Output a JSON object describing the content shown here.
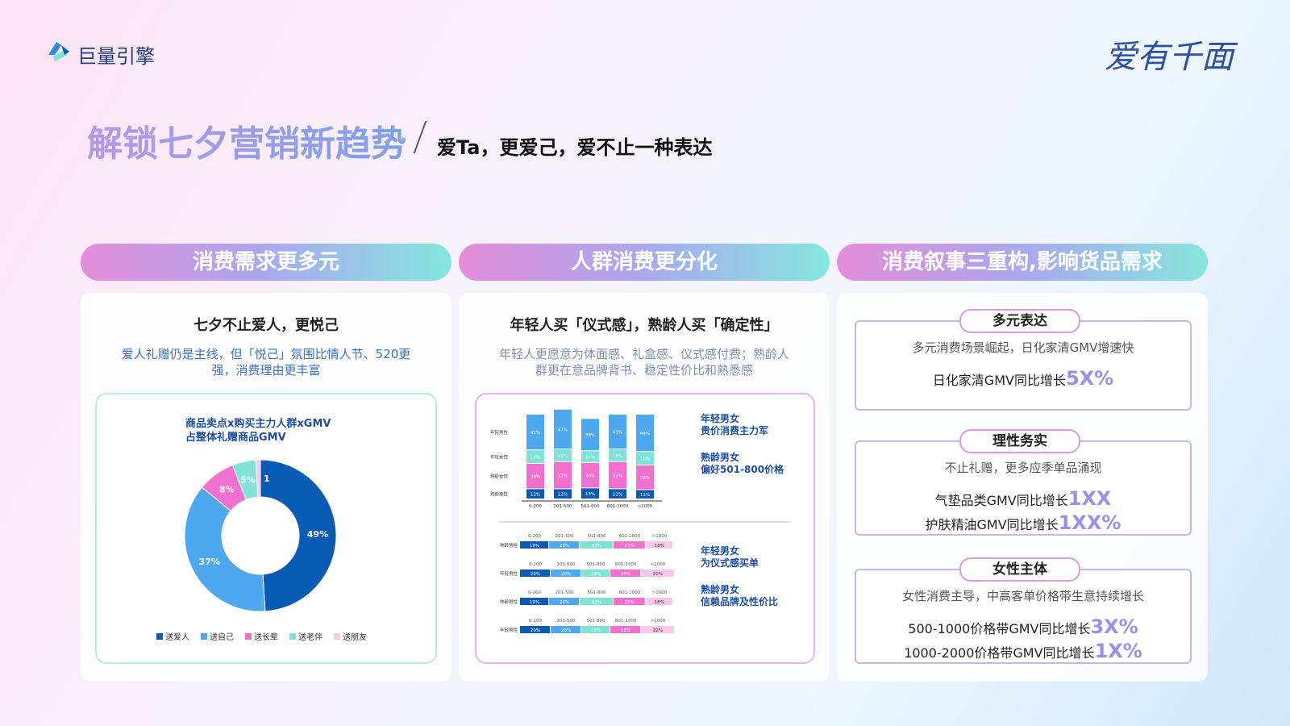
{
  "header": {
    "logo": "巨量引擎",
    "brand": "爱有千面",
    "title": "解锁七夕营销新趋势",
    "subtitle": "爱Ta，更爱己，爱不止一种表达"
  },
  "panel1": {
    "tab": "消费需求更多元",
    "heading": "七夕不止爱人，更悦己",
    "description": "爱人礼赠仍是主线，但「悦己」氛围比情人节、520更强，消费理由更丰富",
    "donut": {
      "title": "商品卖点x购买主力人群xGMV 占整体礼赠商品GMV",
      "categories": [
        "送爱人",
        "送自己",
        "送长辈",
        "送老伴",
        "送朋友"
      ],
      "values": [
        49,
        37,
        8,
        5,
        1
      ],
      "value_labels": [
        "49%",
        "37%",
        "8%",
        "5%",
        "1"
      ],
      "colors": [
        "#0a5bb5",
        "#4da8f0",
        "#f06fcf",
        "#7ee3d6",
        "#f9c8e6"
      ]
    }
  },
  "panel2": {
    "tab": "人群消费更分化",
    "heading": "年轻人买「仪式感」，熟龄人买「确定性」",
    "description": "年轻人更愿意为体面感、礼盒感、仪式感付费；熟龄人群更在意品牌背书、稳定性价比和熟悉感",
    "columns": {
      "categories": [
        "0-200",
        "201-500",
        "501-800",
        "801-1000",
        ">1000"
      ],
      "series": [
        {
          "name": "年轻男性",
          "color": "#4da8f0",
          "values": [
            42,
            47,
            38,
            41,
            44
          ],
          "value_labels": [
            "42%",
            "47%",
            "38%",
            "41%",
            "44%"
          ]
        },
        {
          "name": "年轻女性",
          "color": "#7ee3d6",
          "values": [
            16,
            15,
            14,
            15,
            16
          ],
          "value_labels": [
            "16%",
            "15%",
            "14%",
            "15%",
            "16%"
          ]
        },
        {
          "name": "熟龄女性",
          "color": "#f06fcf",
          "values": [
            30,
            32,
            30,
            32,
            29
          ],
          "value_labels": [
            "30%",
            "32%",
            "30%",
            "32%",
            "29%"
          ]
        },
        {
          "name": "熟龄男性",
          "color": "#0a5bb5",
          "values": [
            12,
            12,
            13,
            12,
            11
          ],
          "value_labels": [
            "12%",
            "12%",
            "13%",
            "12%",
            "11%"
          ]
        }
      ]
    },
    "bars": {
      "categories": [
        "0-200",
        "201-500",
        "501-800",
        "801-1000",
        ">1000"
      ],
      "colors": [
        "#0a5bb5",
        "#4da8f0",
        "#7ee3d6",
        "#f06fcf",
        "#f9c8e6"
      ],
      "rows": [
        {
          "name": "熟龄男性",
          "values": [
            19,
            20,
            22,
            21,
            18
          ],
          "value_labels": [
            "19%",
            "20%",
            "22%",
            "21%",
            "18%"
          ]
        },
        {
          "name": "年轻男性",
          "values": [
            20,
            20,
            19,
            20,
            22
          ],
          "value_labels": [
            "20%",
            "20%",
            "19%",
            "20%",
            "22%"
          ]
        },
        {
          "name": "熟龄男性",
          "values": [
            19,
            20,
            22,
            21,
            18
          ],
          "value_labels": [
            "19%",
            "20%",
            "22%",
            "21%",
            "18%"
          ]
        },
        {
          "name": "年轻男性",
          "values": [
            20,
            20,
            19,
            20,
            22
          ],
          "value_labels": [
            "20%",
            "20%",
            "19%",
            "20%",
            "22%"
          ]
        }
      ]
    },
    "notes": [
      {
        "title": "年轻男女",
        "text": "贵价消费主力军"
      },
      {
        "title": "熟龄男女",
        "text": "偏好501-800价格"
      },
      {
        "title": "年轻男女",
        "text": "为仪式感买单"
      },
      {
        "title": "熟龄男女",
        "text": "信赖品牌及性价比"
      }
    ]
  },
  "panel3": {
    "tab": "消费叙事三重构,影响货品需求",
    "boxes": [
      {
        "tag": "多元表达",
        "description": "多元消费场景崛起，日化家清GMV增速快",
        "metrics": [
          {
            "label": "日化家清GMV同比增长",
            "value": "5X%"
          }
        ]
      },
      {
        "tag": "理性务实",
        "description": "不止礼赠，更多应季单品涌现",
        "metrics": [
          {
            "label": "气垫品类GMV同比增长",
            "value": "1XX"
          },
          {
            "label": "护肤精油GMV同比增长",
            "value": "1XX%"
          }
        ]
      },
      {
        "tag": "女性主体",
        "description": "女性消费主导，中高客单价格带生意持续增长",
        "metrics": [
          {
            "label": "500-1000价格带GMV同比增长",
            "value": "3X%"
          },
          {
            "label": "1000-2000价格带GMV同比增长",
            "value": "1X%"
          }
        ]
      }
    ]
  }
}
